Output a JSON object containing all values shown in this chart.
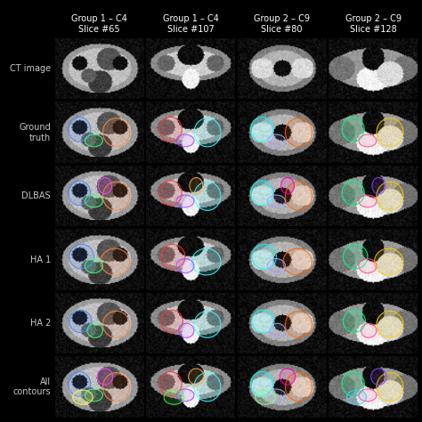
{
  "background_color": "#000000",
  "col_headers": [
    "Group 1 – C4\nSlice #65",
    "Group 1 – C4\nSlice #107",
    "Group 2 – C9\nSlice #80",
    "Group 2 – C9\nSlice #128"
  ],
  "row_labels": [
    "CT image",
    "Ground\ntruth",
    "DLBAS",
    "HA 1",
    "HA 2",
    "All\ncontours"
  ],
  "header_fontsize": 7,
  "label_fontsize": 7,
  "text_color": "#ffffff",
  "label_text_color": "#c8c8c8",
  "figsize": [
    4.74,
    4.74
  ],
  "dpi": 100
}
